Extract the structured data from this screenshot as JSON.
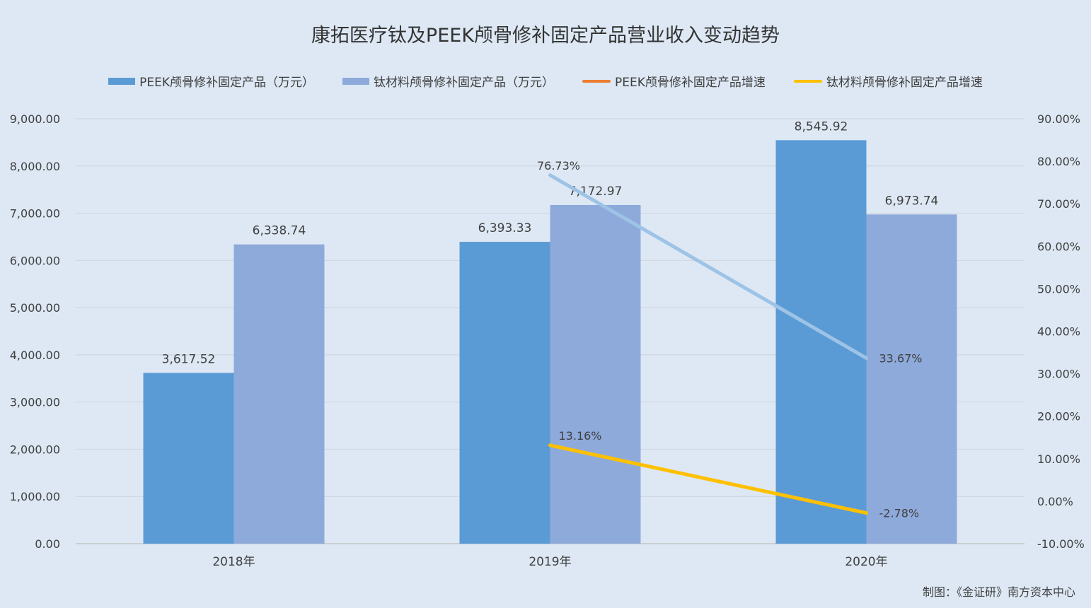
{
  "chart_data": {
    "type": "bar",
    "title": "康拓医疗钛及PEEK颅骨修补固定产品营业收入变动趋势",
    "categories": [
      "2018年",
      "2019年",
      "2020年"
    ],
    "series": [
      {
        "name": "PEEK颅骨修补固定产品（万元）",
        "kind": "bar",
        "axis": "left",
        "color": "#5b9bd5",
        "values": [
          3617.52,
          6393.33,
          8545.92
        ],
        "labels": [
          "3,617.52",
          "6,393.33",
          "8,545.92"
        ]
      },
      {
        "name": "钛材料颅骨修补固定产品（万元）",
        "kind": "bar",
        "axis": "left",
        "color": "#8eaadb",
        "values": [
          6338.74,
          7172.97,
          6973.74
        ],
        "labels": [
          "6,338.74",
          "7,172.97",
          "6,973.74"
        ]
      },
      {
        "name": "PEEK颅骨修补固定产品增速",
        "kind": "line",
        "axis": "right",
        "color": "#ed7d31",
        "draw_color": "#9dc3e6",
        "values": [
          null,
          76.73,
          33.67
        ],
        "labels": [
          "",
          "76.73%",
          "33.67%"
        ]
      },
      {
        "name": "钛材料颅骨修补固定产品增速",
        "kind": "line",
        "axis": "right",
        "color": "#ffc000",
        "values": [
          null,
          13.16,
          -2.78
        ],
        "labels": [
          "",
          "13.16%",
          "-2.78%"
        ]
      }
    ],
    "y_left": {
      "range": [
        0,
        9000
      ],
      "ticks": [
        "0.00",
        "1,000.00",
        "2,000.00",
        "3,000.00",
        "4,000.00",
        "5,000.00",
        "6,000.00",
        "7,000.00",
        "8,000.00",
        "9,000.00"
      ]
    },
    "y_right": {
      "range": [
        -10,
        90
      ],
      "ticks": [
        "-10.00%",
        "0.00%",
        "10.00%",
        "20.00%",
        "30.00%",
        "40.00%",
        "50.00%",
        "60.00%",
        "70.00%",
        "80.00%",
        "90.00%"
      ]
    },
    "grid": true,
    "legend_position": "top"
  },
  "source_note": "制图：《金证研》南方资本中心"
}
